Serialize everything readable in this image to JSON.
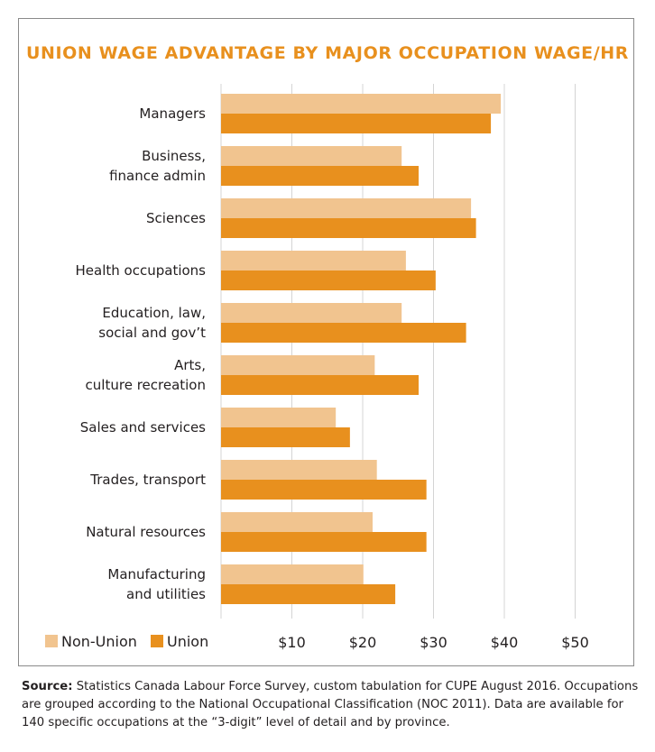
{
  "chart_data": {
    "type": "bar",
    "orientation": "horizontal",
    "title": "UNION WAGE ADVANTAGE BY MAJOR OCCUPATION WAGE/HR",
    "categories": [
      [
        "Managers"
      ],
      [
        "Business,",
        "finance admin"
      ],
      [
        "Sciences"
      ],
      [
        "Health occupations"
      ],
      [
        "Education, law,",
        "social and gov’t"
      ],
      [
        "Arts,",
        "culture recreation"
      ],
      [
        "Sales and services"
      ],
      [
        "Trades, transport"
      ],
      [
        "Natural resources"
      ],
      [
        "Manufacturing",
        "and utilities"
      ]
    ],
    "series": [
      {
        "name": "Non-Union",
        "color": "#f1c48f",
        "values": [
          39.5,
          25.5,
          35.3,
          26.1,
          25.5,
          21.7,
          16.2,
          22.0,
          21.4,
          20.1
        ]
      },
      {
        "name": "Union",
        "color": "#e8901e",
        "values": [
          38.1,
          27.9,
          36.0,
          30.3,
          34.6,
          27.9,
          18.2,
          29.0,
          29.0,
          24.6
        ]
      }
    ],
    "xlim": [
      0,
      53
    ],
    "ticks": [
      10,
      20,
      30,
      40,
      50
    ],
    "tick_labels": [
      "$10",
      "$20",
      "$30",
      "$40",
      "$50"
    ],
    "grid": true,
    "legend_position": "bottom-left"
  },
  "source": {
    "label": "Source:",
    "text": "Statistics Canada Labour Force Survey, custom tabulation for CUPE August 2016. Occupations are grouped according to the National Occupational Classification (NOC 2011). Data are available for 140 specific occupations at the “3-digit” level of detail and by province."
  }
}
